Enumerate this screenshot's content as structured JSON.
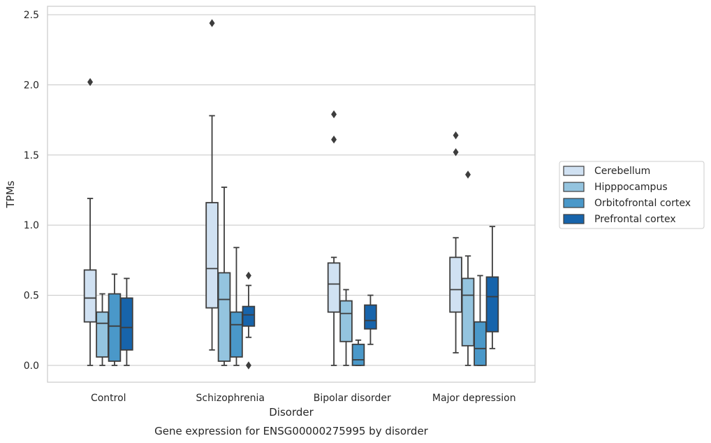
{
  "chart_data": {
    "type": "box",
    "title": "Gene expression for ENSG00000275995 by disorder",
    "xlabel": "Disorder",
    "ylabel": "TPMs",
    "ylim": [
      -0.12,
      2.56
    ],
    "yticks": [
      0.0,
      0.5,
      1.0,
      1.5,
      2.0,
      2.5
    ],
    "ytick_labels": [
      "0.0",
      "0.5",
      "1.0",
      "1.5",
      "2.0",
      "2.5"
    ],
    "grid": true,
    "legend_position": "right",
    "categories": [
      "Control",
      "Schizophrenia",
      "Bipolar disorder",
      "Major depression"
    ],
    "series": [
      {
        "name": "Cerebellum",
        "color": "#d0e1f2",
        "boxes": [
          {
            "whislo": 0.0,
            "q1": 0.31,
            "med": 0.48,
            "q3": 0.68,
            "whishi": 1.19,
            "fliers": [
              2.02
            ]
          },
          {
            "whislo": 0.11,
            "q1": 0.41,
            "med": 0.69,
            "q3": 1.16,
            "whishi": 1.78,
            "fliers": [
              2.44
            ]
          },
          {
            "whislo": 0.0,
            "q1": 0.38,
            "med": 0.58,
            "q3": 0.73,
            "whishi": 0.77,
            "fliers": [
              1.79,
              1.61
            ]
          },
          {
            "whislo": 0.09,
            "q1": 0.38,
            "med": 0.54,
            "q3": 0.77,
            "whishi": 0.91,
            "fliers": [
              1.64,
              1.52
            ]
          }
        ]
      },
      {
        "name": "Hipppocampus",
        "color": "#94c4df",
        "boxes": [
          {
            "whislo": 0.0,
            "q1": 0.06,
            "med": 0.3,
            "q3": 0.38,
            "whishi": 0.51,
            "fliers": []
          },
          {
            "whislo": 0.0,
            "q1": 0.03,
            "med": 0.47,
            "q3": 0.66,
            "whishi": 1.27,
            "fliers": []
          },
          {
            "whislo": 0.0,
            "q1": 0.17,
            "med": 0.37,
            "q3": 0.46,
            "whishi": 0.54,
            "fliers": []
          },
          {
            "whislo": 0.0,
            "q1": 0.14,
            "med": 0.5,
            "q3": 0.62,
            "whishi": 0.78,
            "fliers": [
              1.36
            ]
          }
        ]
      },
      {
        "name": "Orbitofrontal cortex",
        "color": "#4a98c9",
        "boxes": [
          {
            "whislo": 0.0,
            "q1": 0.03,
            "med": 0.28,
            "q3": 0.51,
            "whishi": 0.65,
            "fliers": []
          },
          {
            "whislo": 0.0,
            "q1": 0.06,
            "med": 0.29,
            "q3": 0.38,
            "whishi": 0.84,
            "fliers": []
          },
          {
            "whislo": 0.0,
            "q1": 0.0,
            "med": 0.04,
            "q3": 0.15,
            "whishi": 0.18,
            "fliers": []
          },
          {
            "whislo": 0.0,
            "q1": 0.0,
            "med": 0.12,
            "q3": 0.31,
            "whishi": 0.64,
            "fliers": []
          }
        ]
      },
      {
        "name": "Prefrontal cortex",
        "color": "#1764ab",
        "boxes": [
          {
            "whislo": 0.0,
            "q1": 0.11,
            "med": 0.27,
            "q3": 0.48,
            "whishi": 0.62,
            "fliers": []
          },
          {
            "whislo": 0.2,
            "q1": 0.28,
            "med": 0.36,
            "q3": 0.42,
            "whishi": 0.57,
            "fliers": [
              0.64,
              0.0
            ]
          },
          {
            "whislo": 0.15,
            "q1": 0.26,
            "med": 0.32,
            "q3": 0.43,
            "whishi": 0.5,
            "fliers": []
          },
          {
            "whislo": 0.12,
            "q1": 0.24,
            "med": 0.49,
            "q3": 0.63,
            "whishi": 0.99,
            "fliers": []
          }
        ]
      }
    ]
  }
}
